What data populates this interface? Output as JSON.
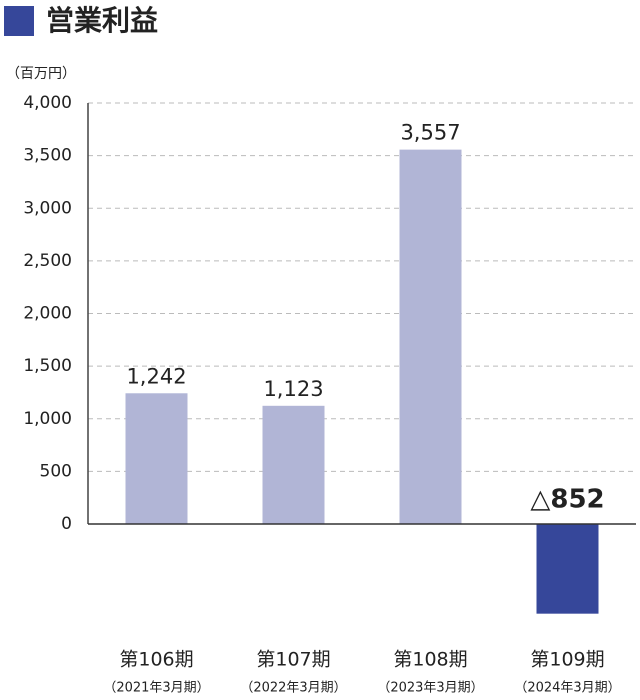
{
  "chart_data": {
    "type": "bar",
    "title": "営業利益",
    "y_unit": "（百万円）",
    "categories": [
      "第106期",
      "第107期",
      "第108期",
      "第109期"
    ],
    "sublabels": [
      "（2021年3月期）",
      "（2022年3月期）",
      "（2023年3月期）",
      "（2024年3月期）"
    ],
    "values": [
      1242,
      1123,
      3557,
      -852
    ],
    "value_labels": [
      "1,242",
      "1,123",
      "3,557",
      "△852"
    ],
    "colors": [
      "#b1b5d6",
      "#b1b5d6",
      "#b1b5d6",
      "#36479a"
    ],
    "category_label_colors": [
      "#222222",
      "#222222",
      "#222222",
      "#36479a"
    ],
    "title_marker_color": "#36479a",
    "ylim": [
      0,
      4000
    ],
    "yticks": [
      0,
      500,
      {
        "value": 1000,
        "label": "1,000"
      },
      {
        "value": 1500,
        "label": "1,500"
      },
      {
        "value": 2000,
        "label": "2,000"
      },
      {
        "value": 2500,
        "label": "2,500"
      },
      {
        "value": 3000,
        "label": "3,000"
      },
      {
        "value": 3500,
        "label": "3,500"
      },
      {
        "value": 4000,
        "label": "4,000"
      }
    ],
    "grid": true
  }
}
